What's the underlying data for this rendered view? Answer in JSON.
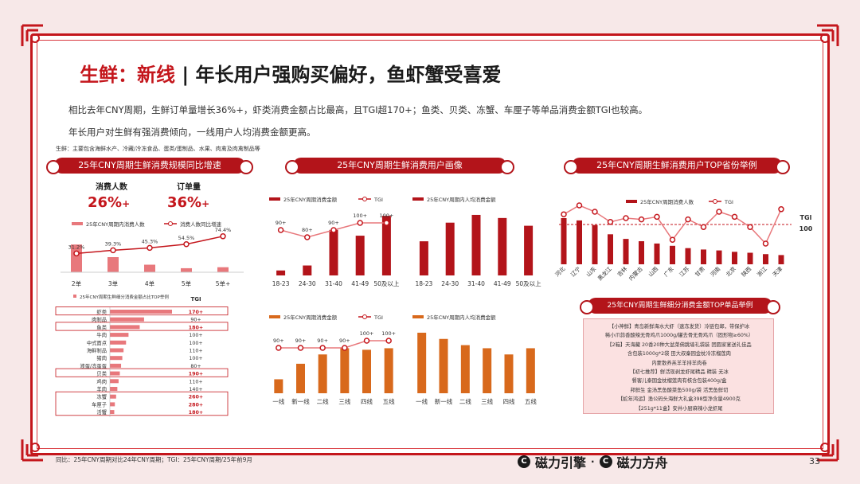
{
  "title": {
    "prefix": "生鲜：新线",
    "sep": "|",
    "rest": "年长用户强购买偏好，鱼虾蟹受喜爱"
  },
  "desc1": "相比去年CNY周期，生鲜订单量增长36%+，虾类消费金额占比最高，且TGI超170+；鱼类、贝类、冻蟹、车厘子等单品消费金额TGI也较高。",
  "desc2": "年长用户对生鲜有强消费倾向，一线用户人均消费金额更高。",
  "note": "生鲜：主要包含海鲜水产、冷藏/冷冻食品、蛋类/蛋制品、水果、肉禽及肉禽制品等",
  "footnote": "同比：25年CNY周期对比24年CNY周期；TGI：25年CNY周期/25年前9月",
  "page_number": "33",
  "logos": {
    "left": "磁力引擎",
    "dot": "·",
    "right": "磁力方舟"
  },
  "colors": {
    "primary": "#c4161c",
    "dark_red": "#b3141a",
    "orange": "#d8691c",
    "light_red": "#e8787c"
  },
  "panel1": {
    "banner": "25年CNY周期生鲜消费规模同比增速",
    "kpi": [
      {
        "label": "消费人数",
        "value": "26%",
        "plus": "+"
      },
      {
        "label": "订单量",
        "value": "36%",
        "plus": "+"
      }
    ],
    "chart_data": {
      "type": "bar",
      "legend": [
        "25年CNY周期内消费人数",
        "消费人数同比增速"
      ],
      "categories": [
        "2单",
        "3单",
        "4单",
        "5单",
        "5单+"
      ],
      "bar_values": [
        5.5,
        3.0,
        1.5,
        0.8,
        1.0
      ],
      "line_values": [
        31.2,
        39.3,
        45.3,
        54.5,
        74.4
      ],
      "line_labels": [
        "31.2%",
        "39.3%",
        "45.3%",
        "54.5%",
        "74.4%"
      ]
    },
    "tgi_chart": {
      "type": "bar",
      "legend": "25年CNY周期生鲜细分消费金额占比TOP举例",
      "tgi_header": "TGI",
      "categories": [
        "虾类",
        "肉制品",
        "鱼类",
        "牛肉",
        "中式面点",
        "海鲜制品",
        "猪肉",
        "液蛋/冻蛋蛋",
        "贝类",
        "鸡肉",
        "羊肉",
        "冻蟹",
        "车厘子",
        "活蟹"
      ],
      "values": [
        100,
        55,
        48,
        30,
        26,
        22,
        20,
        18,
        16,
        14,
        12,
        10,
        8,
        7
      ],
      "tgi": [
        "170+",
        "90+",
        "180+",
        "100+",
        "100+",
        "110+",
        "100+",
        "80+",
        "190+",
        "110+",
        "140+",
        "260+",
        "280+",
        "180+"
      ]
    }
  },
  "panel2": {
    "banner": "25年CNY周期生鲜消费用户画像",
    "age_chart": {
      "type": "bar",
      "legend": [
        "25年CNY周期消费金额",
        "TGI"
      ],
      "categories": [
        "18-23",
        "24-30",
        "31-40",
        "41-49",
        "50及以上"
      ],
      "values": [
        6,
        12,
        55,
        48,
        72
      ],
      "tgi": [
        90,
        80,
        90,
        100,
        100
      ],
      "tgi_labels": [
        "90+",
        "80+",
        "90+",
        "100+",
        "100+"
      ]
    },
    "age_avg_chart": {
      "type": "bar",
      "legend": "25年CNY周期内人均消费金额",
      "categories": [
        "18-23",
        "24-30",
        "31-40",
        "41-49",
        "50及以上"
      ],
      "values": [
        44,
        68,
        78,
        74,
        64
      ]
    },
    "city_chart": {
      "type": "bar",
      "legend": [
        "25年CNY周期消费金额",
        "TGI"
      ],
      "categories": [
        "一线",
        "新一线",
        "二线",
        "三线",
        "四线",
        "五线"
      ],
      "values": [
        18,
        38,
        50,
        58,
        56,
        58
      ],
      "tgi": [
        90,
        90,
        90,
        90,
        100,
        100
      ],
      "tgi_labels": [
        "90+",
        "90+",
        "90+",
        "90+",
        "100+",
        "100+"
      ]
    },
    "city_avg_chart": {
      "type": "bar",
      "legend": "25年CNY周期内人均消费金额",
      "categories": [
        "一线",
        "新一线",
        "二线",
        "三线",
        "四线",
        "五线"
      ],
      "values": [
        78,
        70,
        62,
        58,
        50,
        58
      ]
    }
  },
  "panel3": {
    "banner": "25年CNY周期生鲜消费用户TOP省份举例",
    "province_chart": {
      "type": "bar",
      "legend": [
        "25年CNY周期消费人数",
        "TGI"
      ],
      "categories": [
        "河北",
        "辽宁",
        "山东",
        "黑龙江",
        "吉林",
        "内蒙古",
        "山西",
        "广东",
        "江苏",
        "甘肃",
        "河南",
        "北京",
        "陕西",
        "浙江",
        "天津"
      ],
      "values": [
        100,
        95,
        85,
        65,
        55,
        50,
        45,
        40,
        35,
        32,
        30,
        27,
        25,
        22,
        20
      ],
      "tgi": [
        108,
        115,
        110,
        102,
        105,
        104,
        106,
        88,
        104,
        98,
        110,
        106,
        98,
        85,
        112
      ],
      "ref_label": "TGI",
      "ref_value": "100"
    },
    "items_banner": "25年CNY周期生鲜细分消费金额TOP单品举例",
    "items": [
      "【小神鲜】青岛新鲜海水大虾（速冻发货）冷链包邮，带保护冰",
      "稀小爪蒜香酸辣无骨鸡爪1000g/罐去骨无骨鸡爪（固形物≥60%）",
      "【2箱】天海藏 20香20种大盆菜佛跳墙礼袋装 团圆家宴送礼佳品",
      "含包装1000g*2袋 田大叔秦园金枕冷冻榴莲肉",
      "内蒙散养羔羊羊排羊肉卷",
      "【初七推荐】鲜活现剥龙虾尾精品 精装 无冰",
      "餐客儿泰国金枕榴莲肉有核含包装400g/盒",
      "邦鲜生 金汤黑鱼酸菜鱼500g/袋 活黑鱼鲜切",
      "【蛇年鸿运】渔公码头海鲜大礼盒398型净含量4900克",
      "【251g*11盒】安井小厨麻辣小龙虾尾"
    ]
  }
}
